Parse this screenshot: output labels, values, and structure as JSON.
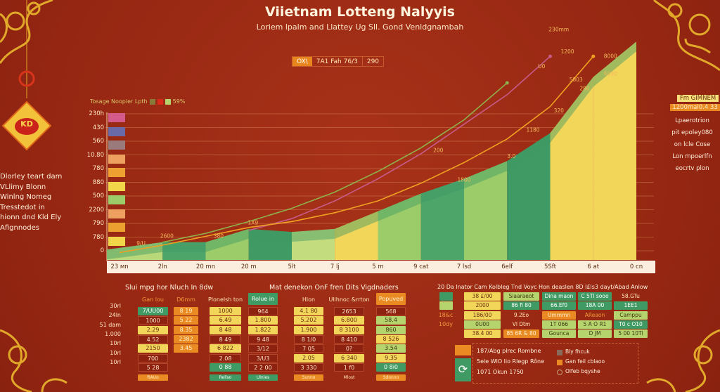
{
  "header": {
    "title": "Viietnam Lotteng Nalyyis",
    "subtitle": "Loriem lpalm and Llattey Ug Sll. Gond Venldgnambah",
    "pill": [
      "OX\\",
      "7A1 Fah 76/3",
      "290"
    ]
  },
  "legend": {
    "label": "Tosage Noopier Lpth",
    "value": "59%",
    "swatches": [
      "#8a7a3a",
      "#d92a1a",
      "#b6d46e"
    ]
  },
  "left_text": [
    "Dlorley teart dam",
    "VLlimy Blonn",
    "Winlng Nomeg",
    "Tresstedot in",
    "hionn dnd Kld Ely",
    "Afignnodes"
  ],
  "ornament_text": "KD",
  "side_panel": {
    "badge1": "Fm GIMNEM",
    "badge2": "1200mal0.4 33",
    "lines": [
      "Lpaerotrion",
      "pit epoley080",
      "on lcle Cose",
      "Lon mpoerlfn",
      "eocrtv plon"
    ]
  },
  "chart_data": {
    "type": "area",
    "title": "Viietnam Lotteng Nalyyis",
    "ylim": [
      0,
      160
    ],
    "y_ticks": [
      "230h",
      "430",
      "560",
      "10.80",
      "780",
      "880",
      "500",
      "2200",
      "790",
      "780",
      "0"
    ],
    "y_tick_swatches": [
      "#d45a8a",
      "#6a6aa8",
      "#9a7a7a",
      "#eea060",
      "#eea030",
      "#f2d64a",
      "#9ccc6a",
      "#eea060",
      "#eca030",
      "#f2d64a"
    ],
    "categories": [
      "23 мn",
      "2ln",
      "20 mn",
      "20 m",
      "5lt",
      "7 lj",
      "5 m",
      "9 cat",
      "7 lsd",
      "6elf",
      "5Sft",
      "6 at",
      "0 cn"
    ],
    "series": [
      {
        "name": "area",
        "values": [
          7,
          12,
          12,
          21,
          19,
          21,
          33,
          45,
          55,
          67,
          86,
          124,
          148
        ]
      },
      {
        "name": "green-trend",
        "color": "#8fb04a",
        "values": [
          null,
          12,
          18,
          26,
          35,
          46,
          60,
          76,
          95,
          120,
          null,
          null,
          null
        ]
      },
      {
        "name": "pink-trend",
        "color": "#c85a8a",
        "values": [
          null,
          null,
          null,
          20,
          28,
          40,
          55,
          72,
          92,
          112,
          138,
          null,
          null
        ]
      },
      {
        "name": "orange-trend",
        "color": "#f0a020",
        "values": [
          5,
          10,
          16,
          22,
          26,
          32,
          40,
          52,
          66,
          82,
          104,
          138,
          null
        ]
      }
    ],
    "annotations": [
      {
        "text": "230mm",
        "cat": 10.2,
        "y": 155
      },
      {
        "text": "1200",
        "cat": 10.4,
        "y": 140
      },
      {
        "text": "U0",
        "cat": 9.8,
        "y": 130
      },
      {
        "text": "8000",
        "cat": 11.4,
        "y": 137
      },
      {
        "text": "6090",
        "cat": 11.4,
        "y": 125
      },
      {
        "text": "5803",
        "cat": 10.6,
        "y": 121
      },
      {
        "text": "280",
        "cat": 10.8,
        "y": 115
      },
      {
        "text": "320",
        "cat": 10.2,
        "y": 100
      },
      {
        "text": "1180",
        "cat": 9.6,
        "y": 87
      },
      {
        "text": "3.0",
        "cat": 9.1,
        "y": 69
      },
      {
        "text": "1800",
        "cat": 8.0,
        "y": 53
      },
      {
        "text": "200",
        "cat": 7.4,
        "y": 73
      },
      {
        "text": "1X9",
        "cat": 3.1,
        "y": 24
      },
      {
        "text": "2600",
        "cat": 1.1,
        "y": 15
      },
      {
        "text": "380",
        "cat": 2.3,
        "y": 15
      },
      {
        "text": "9/U",
        "cat": 0.5,
        "y": 10
      }
    ]
  },
  "table_left": {
    "title": "Slui mpg hor Nluch In 8dw",
    "title2": "Mat denekon OnF fren Dits Vigdnaders",
    "row_labels": [
      "30rl",
      "24ln",
      "51 dam",
      "1.000",
      "10rl",
      "10rl",
      "10rl"
    ],
    "columns": [
      {
        "header": "Gan lou",
        "htone": "on",
        "values": [
          "7/UU00",
          "1000",
          "2.29",
          "4.52",
          "2150",
          "700",
          "5 28"
        ],
        "tones": "gryryrr",
        "footer": "ftAUo",
        "ftone": "o"
      },
      {
        "header": "D6mm",
        "htone": "on",
        "values": [
          "8 19",
          "5 22",
          "8.35",
          "2382",
          "3.45"
        ],
        "tones": "ooooo"
      },
      {
        "header": "Plonelsh ton",
        "htone": "n",
        "values": [
          "1000",
          "6.49",
          "8 48",
          "8 49",
          "6 822",
          "2.08",
          "0 88"
        ],
        "tones": "yyyryrg",
        "footer": "Rellso",
        "ftone": "g"
      },
      {
        "header": "Rolue in",
        "htone": "g",
        "values": [
          "964",
          "1.800",
          "1.822",
          "9 48",
          "3/12",
          "3/U3",
          "2 2 00"
        ],
        "tones": "ryyrrrr",
        "footer": "Ulnles",
        "ftone": "g"
      },
      {
        "header": "Hlon",
        "htone": "n",
        "values": [
          "4.1 80",
          "5.202",
          "1.900",
          "8 1/0",
          "7 05",
          "2.05",
          "3 330"
        ],
        "tones": "yyyrryr",
        "footer": "Sunno",
        "ftone": "o"
      },
      {
        "header": "Ullhnoc &rrton",
        "htone": "n",
        "values": [
          "2653",
          "6.800",
          "8 3100",
          "8 410",
          "0?",
          "6 340",
          "1 f0"
        ],
        "tones": "ryyrryr",
        "footer": "Mlost",
        "ftone": "n"
      },
      {
        "header": "Popuved",
        "htone": "o",
        "values": [
          "568",
          "58.4",
          "860",
          "8 526",
          "3.54",
          "9.35",
          "0 8i0"
        ],
        "tones": "rllylyg",
        "footer": "Sdonno",
        "ftone": "o"
      }
    ]
  },
  "table_right": {
    "title": "20 Da lnator Cam Kolbleg Tnd Voyc Hon deaslen 8D l£ls3 dayt/Abad Anlow",
    "rows": [
      {
        "label": "",
        "swatch": "g",
        "cells": [
          "38 £/00",
          "Siaaraeot",
          "Dina maon",
          "C 5Tl sooo",
          "58.GTu"
        ],
        "tones": "ylggn"
      },
      {
        "label": "",
        "swatch": "l",
        "cells": [
          "2000",
          "86 fi 80",
          "66.Ef0",
          "18A 00",
          "1EE1"
        ],
        "tones": "ygggg"
      },
      {
        "label": "18&c",
        "cells": [
          "1B6/00",
          "9.2Eo",
          "Ummmn",
          "AReaon",
          "Camppu"
        ],
        "tones": "ynoOl"
      },
      {
        "label": "10dy",
        "cells": [
          "0U00",
          "Vl Dtm",
          "1T 066",
          "5 A O R1",
          "T0 c O10"
        ],
        "tones": "lnllg"
      },
      {
        "label": "",
        "cells": [
          "38.4 00",
          "85 6R & 80",
          "Gounca",
          "D JM",
          "5 00 10Tl"
        ],
        "tones": "yolll"
      }
    ],
    "legend_lines": [
      "187/Abg plrec Rombne",
      "5ele WlO lio Rlegp Rône",
      "1071 Okun 1750"
    ],
    "legend_items": [
      {
        "label": "Bly fhcuk",
        "color": "#8a6a5a"
      },
      {
        "label": "Gan feil cblaoo",
        "color": "#e98a22"
      },
      {
        "label": "Olfeb bqyshe",
        "color": "#c8673c"
      }
    ]
  }
}
